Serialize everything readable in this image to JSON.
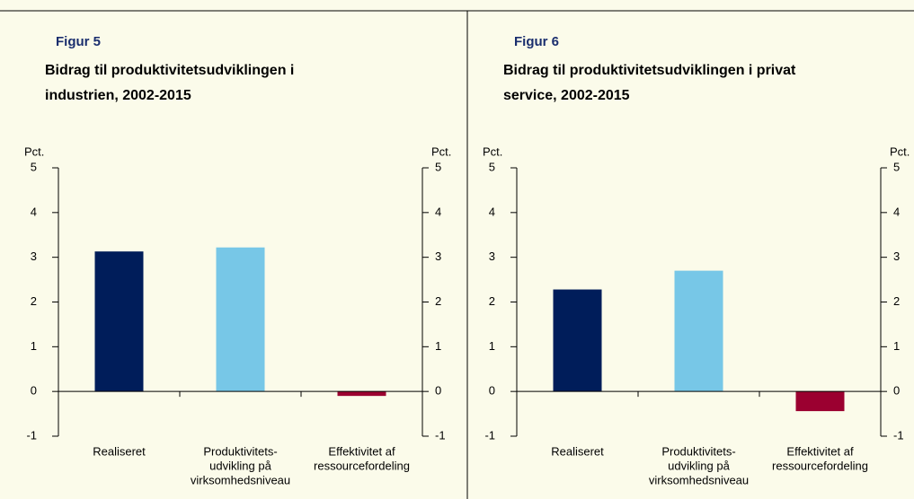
{
  "chart_data": [
    {
      "type": "bar",
      "figure_label": "Figur 5",
      "title": [
        "Bidrag til produktivitetsudviklingen i",
        "industrien, 2002-2015"
      ],
      "ylabel": "Pct.",
      "y2label": "Pct.",
      "categories": [
        [
          "Realiseret"
        ],
        [
          "Produktivitets-",
          "udvikling på",
          "virksomhedsniveau"
        ],
        [
          "Effektivitet af",
          "ressourcefordeling"
        ]
      ],
      "values": [
        3.13,
        3.22,
        -0.1
      ],
      "colors": [
        "#001d5a",
        "#77c7e7",
        "#9b0030"
      ],
      "ylim": [
        -1,
        5
      ],
      "yticks": [
        -1,
        0,
        1,
        2,
        3,
        4,
        5
      ],
      "y2lim": [
        -1,
        5
      ],
      "y2ticks": [
        -1,
        0,
        1,
        2,
        3,
        4,
        5
      ]
    },
    {
      "type": "bar",
      "figure_label": "Figur 6",
      "title": [
        "Bidrag til produktivitetsudviklingen i privat",
        "service, 2002-2015"
      ],
      "ylabel": "Pct.",
      "y2label": "Pct.",
      "categories": [
        [
          "Realiseret"
        ],
        [
          "Produktivitets-",
          "udvikling på",
          "virksomhedsniveau"
        ],
        [
          "Effektivitet af",
          "ressourcefordeling"
        ]
      ],
      "values": [
        2.28,
        2.7,
        -0.44
      ],
      "colors": [
        "#001d5a",
        "#77c7e7",
        "#9b0030"
      ],
      "ylim": [
        -1,
        5
      ],
      "yticks": [
        -1,
        0,
        1,
        2,
        3,
        4,
        5
      ],
      "y2lim": [
        -1,
        5
      ],
      "y2ticks": [
        -1,
        0,
        1,
        2,
        3,
        4,
        5
      ]
    }
  ]
}
